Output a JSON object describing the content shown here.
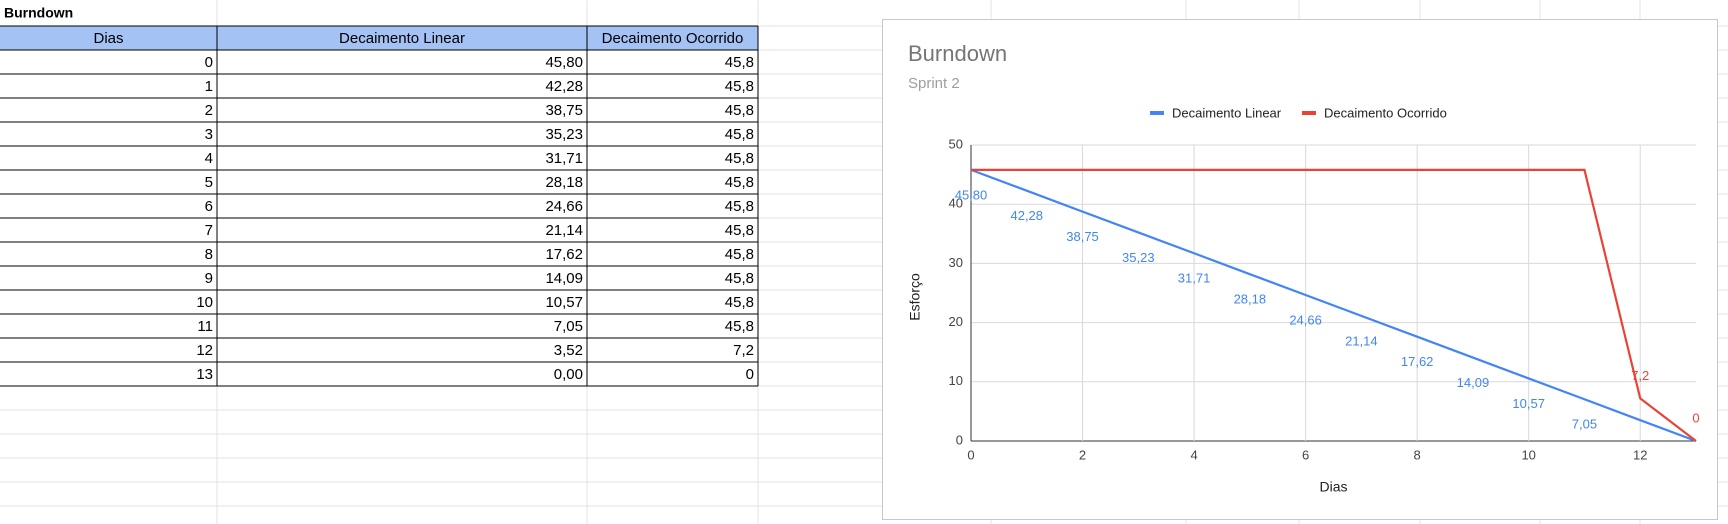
{
  "sheet": {
    "title": "Burndown",
    "headers": [
      "Dias",
      "Decaimento Linear",
      "Decaimento Ocorrido"
    ],
    "rows": [
      [
        0,
        "45,80",
        "45,8"
      ],
      [
        1,
        "42,28",
        "45,8"
      ],
      [
        2,
        "38,75",
        "45,8"
      ],
      [
        3,
        "35,23",
        "45,8"
      ],
      [
        4,
        "31,71",
        "45,8"
      ],
      [
        5,
        "28,18",
        "45,8"
      ],
      [
        6,
        "24,66",
        "45,8"
      ],
      [
        7,
        "21,14",
        "45,8"
      ],
      [
        8,
        "17,62",
        "45,8"
      ],
      [
        9,
        "14,09",
        "45,8"
      ],
      [
        10,
        "10,57",
        "45,8"
      ],
      [
        11,
        "7,05",
        "45,8"
      ],
      [
        12,
        "3,52",
        "7,2"
      ],
      [
        13,
        "0,00",
        "0"
      ]
    ]
  },
  "chart_data": {
    "type": "line",
    "title": "Burndown",
    "subtitle": "Sprint 2",
    "x_label": "Dias",
    "y_label": "Esforço",
    "x": [
      0,
      1,
      2,
      3,
      4,
      5,
      6,
      7,
      8,
      9,
      10,
      11,
      12,
      13
    ],
    "series": [
      {
        "name": "Decaimento Linear",
        "color": "#4285f4",
        "values": [
          45.8,
          42.28,
          38.75,
          35.23,
          31.71,
          28.18,
          24.66,
          21.14,
          17.62,
          14.09,
          10.57,
          7.05,
          3.52,
          0
        ],
        "value_labels": [
          "45,80",
          "42,28",
          "38,75",
          "35,23",
          "31,71",
          "28,18",
          "24,66",
          "21,14",
          "17,62",
          "14,09",
          "10,57",
          "7,05",
          null,
          null
        ]
      },
      {
        "name": "Decaimento Ocorrido",
        "color": "#ea4335",
        "values": [
          45.8,
          45.8,
          45.8,
          45.8,
          45.8,
          45.8,
          45.8,
          45.8,
          45.8,
          45.8,
          45.8,
          45.8,
          7.2,
          0
        ],
        "value_labels": [
          null,
          null,
          null,
          null,
          null,
          null,
          null,
          null,
          null,
          null,
          null,
          null,
          "7,2",
          "0"
        ]
      }
    ],
    "xlim": [
      0,
      13
    ],
    "xticks": [
      0,
      2,
      4,
      6,
      8,
      10,
      12
    ],
    "ylim": [
      0,
      50
    ],
    "yticks": [
      0,
      10,
      20,
      30,
      40,
      50
    ],
    "grid": true,
    "legend": "top"
  }
}
